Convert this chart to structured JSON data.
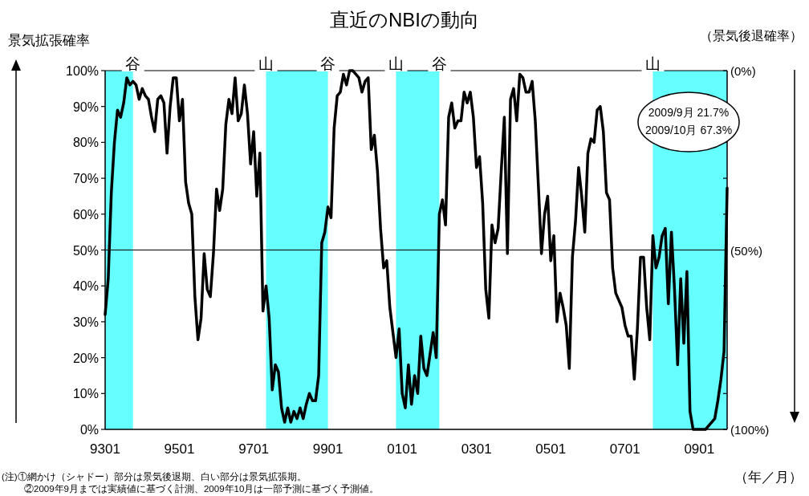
{
  "chart_data": {
    "type": "line",
    "title": "直近のNBIの動向",
    "xlabel": "（年／月）",
    "ylabel": "景気拡張確率",
    "y2label": "（景気後退確率）",
    "xlim": [
      "1993-01",
      "2009-10"
    ],
    "xticks": [
      {
        "value": "1993-01",
        "label": "9301"
      },
      {
        "value": "1995-01",
        "label": "9501"
      },
      {
        "value": "1997-01",
        "label": "9701"
      },
      {
        "value": "1999-01",
        "label": "9901"
      },
      {
        "value": "2001-01",
        "label": "0101"
      },
      {
        "value": "2003-01",
        "label": "0301"
      },
      {
        "value": "2005-01",
        "label": "0501"
      },
      {
        "value": "2007-01",
        "label": "0701"
      },
      {
        "value": "2009-01",
        "label": "0901"
      }
    ],
    "ylim": [
      0,
      100
    ],
    "yticks": [
      {
        "value": 0,
        "label": "0%"
      },
      {
        "value": 10,
        "label": "10%"
      },
      {
        "value": 20,
        "label": "20%"
      },
      {
        "value": 30,
        "label": "30%"
      },
      {
        "value": 40,
        "label": "40%"
      },
      {
        "value": 50,
        "label": "50%"
      },
      {
        "value": 60,
        "label": "60%"
      },
      {
        "value": 70,
        "label": "70%"
      },
      {
        "value": 80,
        "label": "80%"
      },
      {
        "value": 90,
        "label": "90%"
      },
      {
        "value": 100,
        "label": "100%"
      }
    ],
    "y2lim": [
      100,
      0
    ],
    "y2ticks": [
      {
        "value": 0,
        "label": "(0%)"
      },
      {
        "value": 10,
        "label": null
      },
      {
        "value": 20,
        "label": null
      },
      {
        "value": 30,
        "label": null
      },
      {
        "value": 40,
        "label": null
      },
      {
        "value": 50,
        "label": "(50%)"
      },
      {
        "value": 60,
        "label": null
      },
      {
        "value": 70,
        "label": null
      },
      {
        "value": 80,
        "label": null
      },
      {
        "value": 90,
        "label": null
      },
      {
        "value": 100,
        "label": "(100%)"
      }
    ],
    "bands": [
      {
        "axis": "x",
        "from": "1993-01",
        "to": "1993-10",
        "color": "#66ffff"
      },
      {
        "axis": "x",
        "from": "1997-05",
        "to": "1999-01",
        "color": "#66ffff"
      },
      {
        "axis": "x",
        "from": "2000-11",
        "to": "2002-01",
        "color": "#66ffff"
      },
      {
        "axis": "x",
        "from": "2007-10",
        "to": "2009-10",
        "color": "#66ffff"
      }
    ],
    "ref_lines": [
      {
        "axis": "y",
        "value": 50,
        "color": "#000000"
      }
    ],
    "annotations": [
      {
        "text": "谷",
        "x": "1993-10",
        "y": 100
      },
      {
        "text": "山",
        "x": "1997-05",
        "y": 100
      },
      {
        "text": "谷",
        "x": "1999-01",
        "y": 100
      },
      {
        "text": "山",
        "x": "2000-11",
        "y": 100
      },
      {
        "text": "谷",
        "x": "2002-01",
        "y": 100
      },
      {
        "text": "山",
        "x": "2007-10",
        "y": 100
      },
      "2009/9月 21.7%",
      "2009/10月 67.3%",
      "(注)①網かけ（シャドー）部分は景気後退期、白い部分は景気拡張期。",
      "②2009年9月までは実績値に基づく計測、2009年10月は一部予測に基づく予測値。"
    ],
    "x": [
      "1993-01",
      "1993-02",
      "1993-03",
      "1993-04",
      "1993-05",
      "1993-06",
      "1993-07",
      "1993-08",
      "1993-09",
      "1993-10",
      "1993-11",
      "1993-12",
      "1994-01",
      "1994-02",
      "1994-03",
      "1994-04",
      "1994-05",
      "1994-06",
      "1994-07",
      "1994-08",
      "1994-09",
      "1994-10",
      "1994-11",
      "1994-12",
      "1995-01",
      "1995-02",
      "1995-03",
      "1995-04",
      "1995-05",
      "1995-06",
      "1995-07",
      "1995-08",
      "1995-09",
      "1995-10",
      "1995-11",
      "1995-12",
      "1996-01",
      "1996-02",
      "1996-03",
      "1996-04",
      "1996-05",
      "1996-06",
      "1996-07",
      "1996-08",
      "1996-09",
      "1996-10",
      "1996-11",
      "1996-12",
      "1997-01",
      "1997-02",
      "1997-03",
      "1997-04",
      "1997-05",
      "1997-06",
      "1997-07",
      "1997-08",
      "1997-09",
      "1997-10",
      "1997-11",
      "1997-12",
      "1998-01",
      "1998-02",
      "1998-03",
      "1998-04",
      "1998-05",
      "1998-06",
      "1998-07",
      "1998-08",
      "1998-09",
      "1998-10",
      "1998-11",
      "1998-12",
      "1999-01",
      "1999-02",
      "1999-03",
      "1999-04",
      "1999-05",
      "1999-06",
      "1999-07",
      "1999-08",
      "1999-09",
      "1999-10",
      "1999-11",
      "1999-12",
      "2000-01",
      "2000-02",
      "2000-03",
      "2000-04",
      "2000-05",
      "2000-06",
      "2000-07",
      "2000-08",
      "2000-09",
      "2000-10",
      "2000-11",
      "2000-12",
      "2001-01",
      "2001-02",
      "2001-03",
      "2001-04",
      "2001-05",
      "2001-06",
      "2001-07",
      "2001-08",
      "2001-09",
      "2001-10",
      "2001-11",
      "2001-12",
      "2002-01",
      "2002-02",
      "2002-03",
      "2002-04",
      "2002-05",
      "2002-06",
      "2002-07",
      "2002-08",
      "2002-09",
      "2002-10",
      "2002-11",
      "2002-12",
      "2003-01",
      "2003-02",
      "2003-03",
      "2003-04",
      "2003-05",
      "2003-06",
      "2003-07",
      "2003-08",
      "2003-09",
      "2003-10",
      "2003-11",
      "2003-12",
      "2004-01",
      "2004-02",
      "2004-03",
      "2004-04",
      "2004-05",
      "2004-06",
      "2004-07",
      "2004-08",
      "2004-09",
      "2004-10",
      "2004-11",
      "2004-12",
      "2005-01",
      "2005-02",
      "2005-03",
      "2005-04",
      "2005-05",
      "2005-06",
      "2005-07",
      "2005-08",
      "2005-09",
      "2005-10",
      "2005-11",
      "2005-12",
      "2006-01",
      "2006-02",
      "2006-03",
      "2006-04",
      "2006-05",
      "2006-06",
      "2006-07",
      "2006-08",
      "2006-09",
      "2006-10",
      "2006-11",
      "2006-12",
      "2007-01",
      "2007-02",
      "2007-03",
      "2007-04",
      "2007-05",
      "2007-06",
      "2007-07",
      "2007-08",
      "2007-09",
      "2007-10",
      "2007-11",
      "2007-12",
      "2008-01",
      "2008-02",
      "2008-03",
      "2008-04",
      "2008-05",
      "2008-06",
      "2008-07",
      "2008-08",
      "2008-09",
      "2008-10",
      "2008-11",
      "2008-12",
      "2009-01",
      "2009-02",
      "2009-03",
      "2009-04",
      "2009-05",
      "2009-06",
      "2009-07",
      "2009-08",
      "2009-09",
      "2009-10"
    ],
    "series": [
      {
        "color": "#000000",
        "values": [
          32,
          42,
          66,
          80,
          89,
          87,
          91,
          98,
          96,
          97,
          96,
          92,
          95,
          93,
          92,
          87,
          83,
          92,
          93,
          91,
          77,
          90,
          98,
          98,
          86,
          92,
          69,
          63,
          60,
          37,
          25,
          31,
          49,
          39,
          37,
          49,
          67,
          61,
          67,
          85,
          92,
          88,
          98,
          86,
          88,
          96,
          88,
          74,
          83,
          65,
          77,
          33,
          40,
          31,
          11,
          18,
          16,
          6,
          2,
          6,
          2,
          5,
          3,
          6,
          3,
          7,
          10,
          8,
          8,
          15,
          52,
          55,
          62,
          59,
          84,
          93,
          94,
          99,
          96,
          100,
          100,
          99,
          98,
          94,
          97,
          98,
          78,
          82,
          72,
          56,
          45,
          47,
          34,
          27,
          20,
          28,
          10,
          6,
          18,
          7,
          15,
          10,
          26,
          17,
          15,
          21,
          27,
          20,
          60,
          64,
          57,
          87,
          91,
          84,
          86,
          86,
          94,
          91,
          94,
          87,
          73,
          76,
          63,
          39,
          31,
          57,
          52,
          56,
          72,
          87,
          49,
          92,
          95,
          86,
          99,
          98,
          94,
          94,
          97,
          86,
          68,
          49,
          60,
          65,
          47,
          54,
          30,
          38,
          34,
          29,
          17,
          48,
          58,
          73,
          65,
          55,
          77,
          81,
          80,
          89,
          90,
          83,
          66,
          64,
          45,
          38,
          36,
          34,
          29,
          26,
          26,
          14,
          28,
          48,
          48,
          34,
          25,
          54,
          45,
          48,
          54,
          56,
          35,
          55,
          39,
          18,
          42,
          24,
          44,
          5,
          0,
          0,
          0,
          0,
          0,
          1,
          2,
          3,
          8,
          14,
          21.7,
          67.3
        ]
      }
    ]
  }
}
